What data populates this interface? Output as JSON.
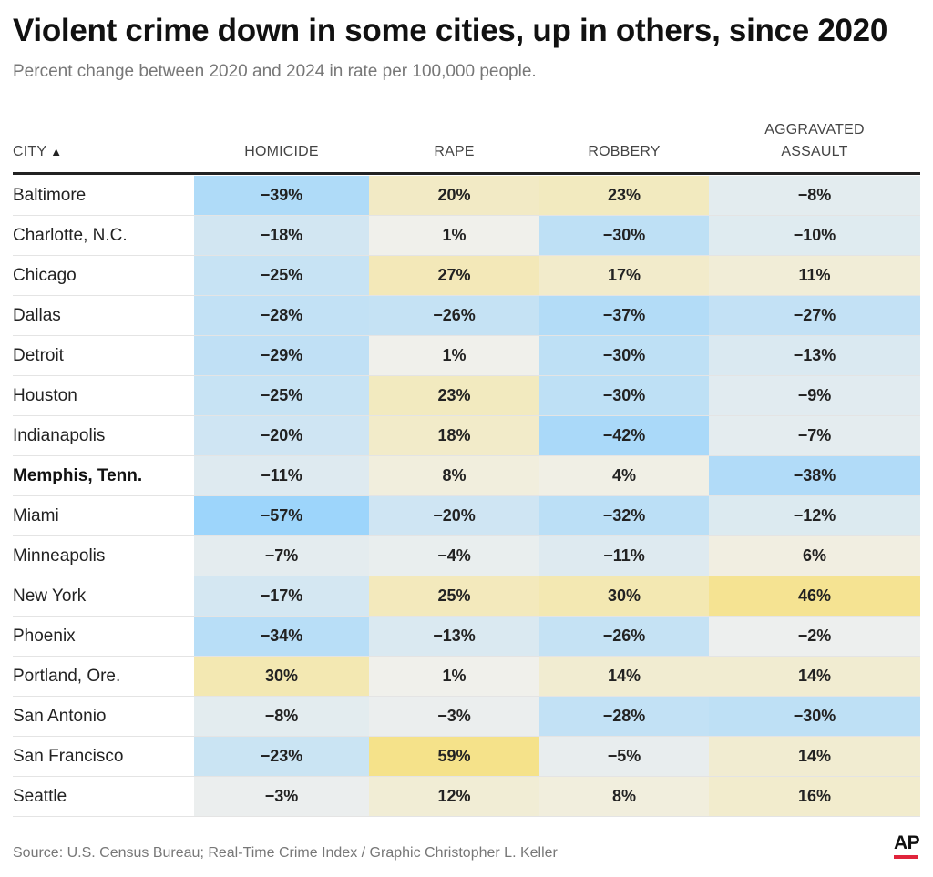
{
  "header": {
    "title": "Violent crime down in some cities, up in others, since 2020",
    "subtitle": "Percent change between 2020 and 2024 in rate per 100,000 people."
  },
  "columns": {
    "city": "CITY",
    "homicide": "HOMICIDE",
    "rape": "RAPE",
    "robbery": "ROBBERY",
    "assault_line1": "AGGRAVATED",
    "assault_line2": "ASSAULT"
  },
  "sort_icon": "▲",
  "footer": {
    "source": "Source: U.S. Census Bureau; Real-Time Crime Index / Graphic Christopher L. Keller",
    "logo": "AP"
  },
  "colors": {
    "logo_accent": "#e0243b",
    "decrease_max": "#9dd5fb",
    "increase_max": "#f5e28a",
    "neutral": "#f0f0ed"
  },
  "chart_data": {
    "type": "table",
    "title": "Violent crime down in some cities, up in others, since 2020",
    "subtitle": "Percent change between 2020 and 2024 in rate per 100,000 people.",
    "unit": "%",
    "columns": [
      "HOMICIDE",
      "RAPE",
      "ROBBERY",
      "AGGRAVATED ASSAULT"
    ],
    "rows": [
      {
        "city": "Baltimore",
        "values": [
          -39,
          20,
          23,
          -8
        ]
      },
      {
        "city": "Charlotte, N.C.",
        "values": [
          -18,
          1,
          -30,
          -10
        ]
      },
      {
        "city": "Chicago",
        "values": [
          -25,
          27,
          17,
          11
        ]
      },
      {
        "city": "Dallas",
        "values": [
          -28,
          -26,
          -37,
          -27
        ]
      },
      {
        "city": "Detroit",
        "values": [
          -29,
          1,
          -30,
          -13
        ]
      },
      {
        "city": "Houston",
        "values": [
          -25,
          23,
          -30,
          -9
        ]
      },
      {
        "city": "Indianapolis",
        "values": [
          -20,
          18,
          -42,
          -7
        ]
      },
      {
        "city": "Memphis, Tenn.",
        "values": [
          -11,
          8,
          4,
          -38
        ],
        "highlight": true
      },
      {
        "city": "Miami",
        "values": [
          -57,
          -20,
          -32,
          -12
        ]
      },
      {
        "city": "Minneapolis",
        "values": [
          -7,
          -4,
          -11,
          6
        ]
      },
      {
        "city": "New York",
        "values": [
          -17,
          25,
          30,
          46
        ]
      },
      {
        "city": "Phoenix",
        "values": [
          -34,
          -13,
          -26,
          -2
        ]
      },
      {
        "city": "Portland, Ore.",
        "values": [
          30,
          1,
          14,
          14
        ]
      },
      {
        "city": "San Antonio",
        "values": [
          -8,
          -3,
          -28,
          -30
        ]
      },
      {
        "city": "San Francisco",
        "values": [
          -23,
          59,
          -5,
          14
        ]
      },
      {
        "city": "Seattle",
        "values": [
          -3,
          12,
          8,
          16
        ]
      }
    ]
  }
}
